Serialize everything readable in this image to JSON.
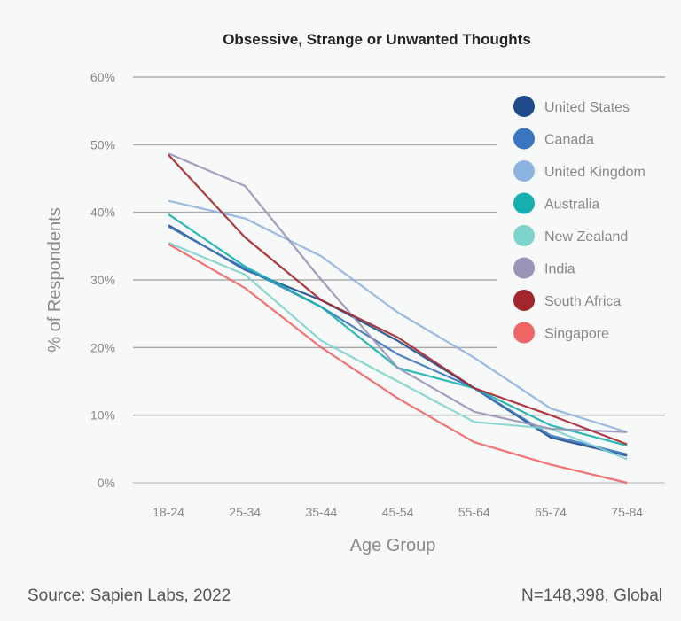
{
  "chart_data": {
    "type": "line",
    "title": "Obsessive, Strange or Unwanted Thoughts",
    "xlabel": "Age Group",
    "ylabel": "% of Respondents",
    "ylim": [
      0,
      60
    ],
    "yticks": [
      "0%",
      "10%",
      "20%",
      "30%",
      "40%",
      "50%",
      "60%"
    ],
    "categories": [
      "18-24",
      "25-34",
      "35-44",
      "45-54",
      "55-64",
      "65-74",
      "75-84"
    ],
    "grid": true,
    "legend_position": "top-right",
    "series": [
      {
        "name": "United States",
        "color": "#1f4b8a",
        "values": [
          38.1,
          31.5,
          27,
          21,
          14,
          6.7,
          4
        ]
      },
      {
        "name": "Canada",
        "color": "#3a76c0",
        "values": [
          37.9,
          31.7,
          26,
          19,
          14,
          7,
          4.2
        ]
      },
      {
        "name": "United Kingdom",
        "color": "#8db3e0",
        "values": [
          41.7,
          39.1,
          33.5,
          25.2,
          18.5,
          11,
          7.5
        ]
      },
      {
        "name": "Australia",
        "color": "#17afaf",
        "values": [
          39.7,
          32,
          26,
          17,
          14,
          8.5,
          5.5
        ]
      },
      {
        "name": "New Zealand",
        "color": "#7fd3cd",
        "values": [
          35.5,
          30.8,
          21,
          15,
          9,
          8,
          3.5
        ]
      },
      {
        "name": "India",
        "color": "#9a94b8",
        "values": [
          48.7,
          43.9,
          30,
          17,
          10.5,
          8,
          7.5
        ]
      },
      {
        "name": "South Africa",
        "color": "#a3262d",
        "values": [
          48.5,
          36.3,
          27,
          21.5,
          14,
          10,
          5.7
        ]
      },
      {
        "name": "Singapore",
        "color": "#ef6464",
        "values": [
          35.3,
          28.8,
          20,
          12.5,
          6,
          2.7,
          0
        ]
      }
    ]
  },
  "footer": {
    "source": "Source: Sapien Labs, 2022",
    "sample": "N=148,398, Global"
  }
}
